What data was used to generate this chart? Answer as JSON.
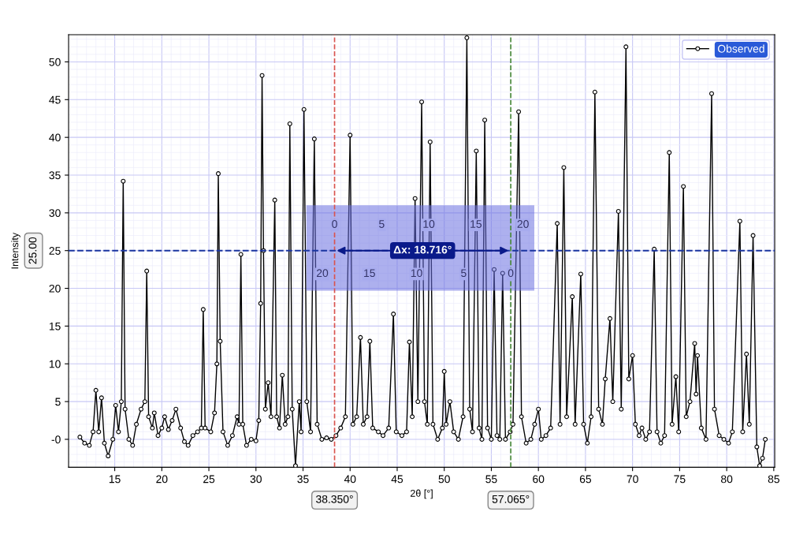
{
  "chart_data": {
    "type": "line",
    "xlabel": "2θ [°]",
    "ylabel": "Intensity",
    "xlim": [
      10.1,
      85.1
    ],
    "ylim": [
      -3.7,
      53.6
    ],
    "xticks": [
      15,
      20,
      25,
      30,
      35,
      40,
      45,
      50,
      55,
      60,
      65,
      70,
      75,
      80,
      85
    ],
    "yticks": [
      {
        "value": 0,
        "label": "-0"
      },
      5,
      10,
      15,
      20,
      25,
      30,
      35,
      40,
      45,
      50
    ],
    "grid": true,
    "legend": "top right",
    "marker": "circle",
    "line_style": "solid",
    "series": [
      {
        "name": "Observed",
        "color": "#000000",
        "x": [
          11.3,
          11.8,
          12.3,
          12.7,
          13.0,
          13.3,
          13.6,
          13.9,
          14.3,
          14.8,
          15.1,
          15.4,
          15.7,
          15.9,
          16.1,
          16.5,
          16.9,
          17.3,
          17.8,
          18.2,
          18.4,
          18.6,
          19.0,
          19.2,
          19.6,
          20.0,
          20.3,
          20.7,
          21.1,
          21.5,
          22.0,
          22.4,
          22.8,
          23.3,
          23.8,
          24.2,
          24.4,
          24.6,
          25.2,
          25.6,
          25.85,
          26.0,
          26.2,
          26.5,
          27.0,
          27.5,
          28.0,
          28.2,
          28.4,
          28.6,
          29.0,
          29.5,
          30.0,
          30.3,
          30.5,
          30.65,
          30.8,
          31.0,
          31.3,
          31.6,
          32.0,
          32.2,
          32.5,
          32.8,
          33.1,
          33.4,
          33.6,
          33.85,
          34.2,
          34.6,
          34.8,
          35.1,
          35.4,
          35.8,
          36.2,
          36.5,
          37.0,
          37.5,
          38.0,
          38.5,
          39.0,
          39.5,
          40.0,
          40.3,
          40.7,
          41.1,
          41.4,
          41.8,
          42.1,
          42.4,
          43.0,
          43.5,
          44.1,
          44.6,
          44.9,
          45.5,
          46.0,
          46.3,
          46.6,
          46.9,
          47.2,
          47.6,
          47.9,
          48.2,
          48.5,
          48.8,
          49.3,
          49.8,
          50.0,
          50.2,
          50.6,
          51.0,
          51.5,
          52.0,
          52.4,
          52.7,
          53.0,
          53.4,
          53.7,
          54.0,
          54.3,
          54.6,
          55.0,
          55.3,
          55.6,
          55.9,
          56.2,
          56.5,
          57.0,
          57.3,
          57.9,
          58.2,
          58.7,
          59.2,
          59.6,
          60.0,
          60.3,
          60.8,
          61.3,
          62.0,
          62.3,
          62.7,
          63.0,
          63.6,
          63.9,
          64.5,
          64.8,
          65.2,
          65.6,
          66.0,
          66.4,
          66.8,
          67.1,
          67.6,
          67.9,
          68.5,
          68.8,
          69.3,
          69.6,
          70.0,
          70.3,
          70.7,
          71.0,
          71.4,
          71.8,
          72.3,
          72.6,
          73.0,
          73.4,
          73.9,
          74.2,
          74.6,
          74.9,
          75.4,
          75.7,
          76.1,
          76.6,
          76.75,
          76.9,
          77.3,
          77.8,
          78.4,
          78.7,
          79.2,
          79.7,
          80.2,
          80.6,
          81.4,
          81.7,
          82.1,
          82.4,
          82.8,
          83.2,
          83.5,
          83.8,
          84.1
        ],
        "values": [
          0.3,
          -0.5,
          -0.8,
          1,
          6.5,
          1,
          5.5,
          -0.5,
          -2.2,
          0,
          4.5,
          1,
          5,
          34.2,
          4,
          0,
          -0.8,
          2,
          4,
          5,
          22.3,
          3,
          1.5,
          3.5,
          0.5,
          1.5,
          3,
          1.3,
          2.5,
          4,
          1.5,
          -0.3,
          -0.8,
          0.5,
          1,
          1.5,
          17.2,
          1.5,
          1,
          3.5,
          10,
          35.2,
          13,
          1,
          -0.8,
          0.5,
          3,
          2,
          24.5,
          2,
          -0.8,
          0,
          -0.2,
          2.5,
          18,
          48.2,
          25,
          4,
          7.5,
          3,
          31.7,
          3,
          1.5,
          8.5,
          2,
          3,
          41.8,
          4,
          -3.5,
          5,
          1,
          43.7,
          5,
          1,
          39.8,
          2,
          0,
          0.2,
          0,
          0.5,
          1.5,
          3,
          40.3,
          2,
          3,
          13.5,
          2,
          3,
          13,
          1.5,
          1,
          0.5,
          1.5,
          16.6,
          1,
          0.5,
          1,
          12.9,
          3,
          31.9,
          5,
          44.7,
          5,
          2,
          39.4,
          2,
          0,
          1.5,
          9,
          2,
          5,
          1,
          0,
          3,
          53.2,
          4,
          1,
          38.2,
          1.5,
          0,
          42.3,
          1.5,
          0,
          22.5,
          0.5,
          0,
          22,
          0,
          1,
          2,
          43.4,
          3,
          -0.5,
          0,
          2,
          4,
          0,
          0.5,
          1.5,
          28.6,
          2,
          36,
          3,
          18.9,
          2,
          21.9,
          2,
          -0.5,
          3,
          46,
          4,
          2,
          8,
          16,
          5,
          30.2,
          4,
          52,
          8,
          11.1,
          2,
          0.5,
          1.5,
          0,
          1,
          25.2,
          1,
          -0.5,
          0.5,
          38,
          2,
          8.3,
          1,
          33.5,
          3,
          5,
          12.7,
          6,
          11.1,
          1.5,
          0,
          45.8,
          4,
          0.5,
          0,
          -0.5,
          1,
          28.9,
          1,
          11.3,
          2,
          27,
          -1,
          -3.5,
          -2.5,
          0
        ]
      }
    ],
    "ref_lines": [
      {
        "axis": "x",
        "value": 38.35,
        "label": "38.350°",
        "color": "#d9534f",
        "line_style": "dashed"
      },
      {
        "axis": "x",
        "value": 57.065,
        "label": "57.065°",
        "color": "#4a8a3a",
        "line_style": "dashed"
      },
      {
        "axis": "y",
        "value": 25,
        "label": "25.00",
        "color": "#1a35a0",
        "line_style": "dashed"
      }
    ],
    "annotations": [
      {
        "text": "Δx: 18.716°",
        "x": 47.7,
        "y": 25
      },
      "0",
      "5",
      "10",
      "15",
      "20",
      "20",
      "15",
      "10",
      "5",
      "0"
    ]
  }
}
